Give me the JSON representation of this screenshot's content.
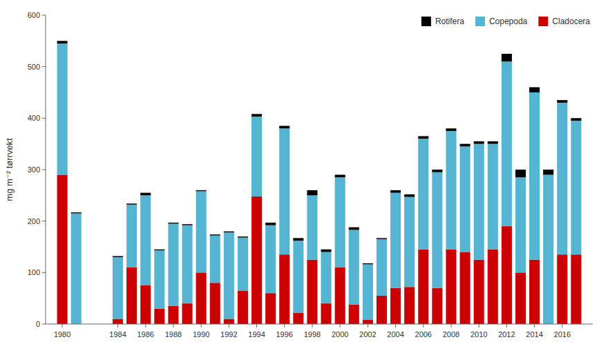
{
  "chart_data": {
    "type": "bar",
    "stacked": true,
    "x": [
      1980,
      1981,
      1984,
      1985,
      1986,
      1987,
      1988,
      1989,
      1990,
      1991,
      1992,
      1993,
      1994,
      1995,
      1996,
      1997,
      1998,
      1999,
      2000,
      2001,
      2002,
      2003,
      2004,
      2005,
      2006,
      2007,
      2008,
      2009,
      2010,
      2011,
      2012,
      2013,
      2014,
      2015,
      2016,
      2017
    ],
    "series": [
      {
        "name": "Cladocera",
        "color": "#CC0000",
        "values": [
          290,
          0,
          10,
          110,
          75,
          30,
          35,
          40,
          100,
          80,
          10,
          65,
          248,
          60,
          135,
          22,
          125,
          40,
          110,
          38,
          8,
          55,
          70,
          72,
          145,
          70,
          145,
          140,
          125,
          145,
          190,
          100,
          125,
          0,
          135,
          135
        ]
      },
      {
        "name": "Copepoda",
        "color": "#56B4D3",
        "values": [
          255,
          215,
          120,
          122,
          175,
          113,
          160,
          152,
          158,
          92,
          168,
          103,
          155,
          132,
          245,
          140,
          125,
          100,
          175,
          145,
          108,
          110,
          185,
          175,
          215,
          225,
          230,
          205,
          225,
          205,
          320,
          185,
          325,
          290,
          295,
          260
        ]
      },
      {
        "name": "Rotifera",
        "color": "#000000",
        "values": [
          5,
          2,
          2,
          2,
          5,
          2,
          2,
          2,
          2,
          2,
          2,
          2,
          5,
          5,
          5,
          5,
          10,
          5,
          5,
          5,
          2,
          2,
          5,
          5,
          5,
          5,
          5,
          5,
          5,
          5,
          15,
          15,
          10,
          10,
          5,
          5
        ]
      }
    ],
    "ylabel": "mg m⁻² tørrvekt",
    "xlim": [
      1978.8,
      2018.2
    ],
    "xticks": [
      1980,
      1984,
      1986,
      1988,
      1990,
      1992,
      1994,
      1996,
      1998,
      2000,
      2002,
      2004,
      2006,
      2008,
      2010,
      2012,
      2014,
      2016
    ],
    "ylim": [
      0,
      600
    ],
    "yticks": [
      0,
      100,
      200,
      300,
      400,
      500,
      600
    ],
    "grid": false,
    "legend": "upper right"
  }
}
